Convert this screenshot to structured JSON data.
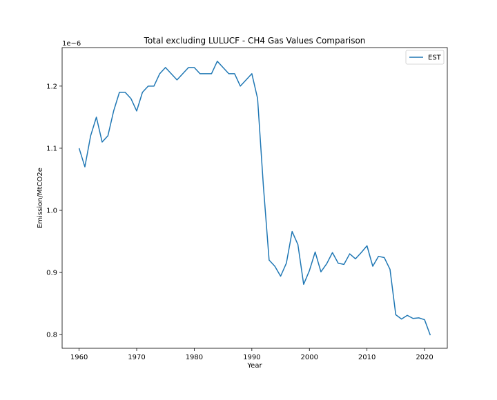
{
  "chart_data": {
    "type": "line",
    "title": "Total excluding LULUCF - CH4 Gas Values Comparison",
    "xlabel": "Year",
    "ylabel": "Emission/MtCO2e",
    "y_offset_label": "1e−6",
    "y_scale": 1e-06,
    "xlim": [
      1957.05,
      2023.95
    ],
    "ylim": [
      0.778,
      1.262
    ],
    "x_ticks": [
      1960,
      1970,
      1980,
      1990,
      2000,
      2010,
      2020
    ],
    "y_ticks": [
      0.8,
      0.9,
      1.0,
      1.1,
      1.2
    ],
    "y_tick_labels": [
      "0.8",
      "0.9",
      "1.0",
      "1.1",
      "1.2"
    ],
    "grid": false,
    "legend_position": "top-right",
    "colors": {
      "EST": "#1f77b4"
    },
    "series": [
      {
        "name": "EST",
        "x": [
          1960,
          1961,
          1962,
          1963,
          1964,
          1965,
          1966,
          1967,
          1968,
          1969,
          1970,
          1971,
          1972,
          1973,
          1974,
          1975,
          1976,
          1977,
          1978,
          1979,
          1980,
          1981,
          1982,
          1983,
          1984,
          1985,
          1986,
          1987,
          1988,
          1989,
          1990,
          1991,
          1992,
          1993,
          1994,
          1995,
          1996,
          1997,
          1998,
          1999,
          2000,
          2001,
          2002,
          2003,
          2004,
          2005,
          2006,
          2007,
          2008,
          2009,
          2010,
          2011,
          2012,
          2013,
          2014,
          2015,
          2016,
          2017,
          2018,
          2019,
          2020,
          2021
        ],
        "values": [
          1.1,
          1.07,
          1.12,
          1.15,
          1.11,
          1.12,
          1.16,
          1.19,
          1.19,
          1.18,
          1.16,
          1.19,
          1.2,
          1.2,
          1.22,
          1.23,
          1.22,
          1.21,
          1.22,
          1.23,
          1.23,
          1.22,
          1.22,
          1.22,
          1.24,
          1.23,
          1.22,
          1.22,
          1.2,
          1.21,
          1.22,
          1.18,
          1.04,
          0.92,
          0.91,
          0.894,
          0.915,
          0.966,
          0.945,
          0.881,
          0.903,
          0.933,
          0.901,
          0.914,
          0.932,
          0.915,
          0.913,
          0.93,
          0.922,
          0.932,
          0.943,
          0.91,
          0.926,
          0.924,
          0.905,
          0.832,
          0.825,
          0.831,
          0.826,
          0.827,
          0.824,
          0.799
        ]
      }
    ]
  }
}
